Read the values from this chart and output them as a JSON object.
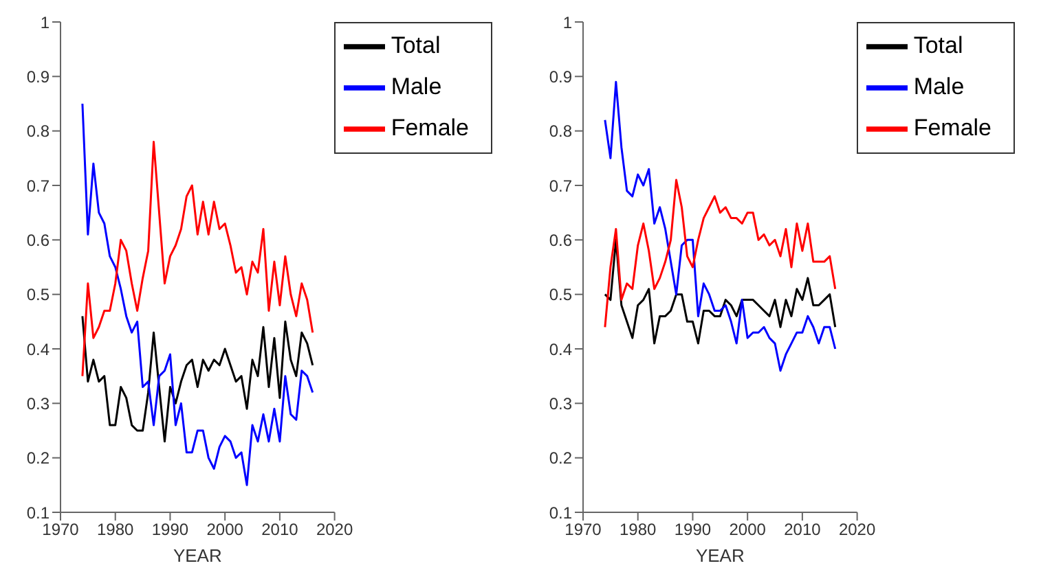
{
  "chart_data": [
    {
      "type": "line",
      "xlabel": "YEAR",
      "x": [
        1974,
        1975,
        1976,
        1977,
        1978,
        1979,
        1980,
        1981,
        1982,
        1983,
        1984,
        1985,
        1986,
        1987,
        1988,
        1989,
        1990,
        1991,
        1992,
        1993,
        1994,
        1995,
        1996,
        1997,
        1998,
        1999,
        2000,
        2001,
        2002,
        2003,
        2004,
        2005,
        2006,
        2007,
        2008,
        2009,
        2010,
        2011,
        2012,
        2013,
        2014,
        2015,
        2016
      ],
      "series": [
        {
          "name": "Total",
          "color": "#000000",
          "values": [
            0.46,
            0.34,
            0.38,
            0.34,
            0.35,
            0.26,
            0.26,
            0.33,
            0.31,
            0.26,
            0.25,
            0.25,
            0.32,
            0.43,
            0.33,
            0.23,
            0.33,
            0.3,
            0.34,
            0.37,
            0.38,
            0.33,
            0.38,
            0.36,
            0.38,
            0.37,
            0.4,
            0.37,
            0.34,
            0.35,
            0.29,
            0.38,
            0.35,
            0.44,
            0.33,
            0.42,
            0.31,
            0.45,
            0.38,
            0.35,
            0.43,
            0.41,
            0.37
          ]
        },
        {
          "name": "Male",
          "color": "#0000ff",
          "values": [
            0.85,
            0.61,
            0.74,
            0.65,
            0.63,
            0.57,
            0.55,
            0.51,
            0.46,
            0.43,
            0.45,
            0.33,
            0.34,
            0.26,
            0.35,
            0.36,
            0.39,
            0.26,
            0.3,
            0.21,
            0.21,
            0.25,
            0.25,
            0.2,
            0.18,
            0.22,
            0.24,
            0.23,
            0.2,
            0.21,
            0.15,
            0.26,
            0.23,
            0.28,
            0.23,
            0.29,
            0.23,
            0.35,
            0.28,
            0.27,
            0.36,
            0.35,
            0.32
          ]
        },
        {
          "name": "Female",
          "color": "#ff0000",
          "values": [
            0.35,
            0.52,
            0.42,
            0.44,
            0.47,
            0.47,
            0.52,
            0.6,
            0.58,
            0.52,
            0.47,
            0.53,
            0.58,
            0.78,
            0.65,
            0.52,
            0.57,
            0.59,
            0.62,
            0.68,
            0.7,
            0.61,
            0.67,
            0.61,
            0.67,
            0.62,
            0.63,
            0.59,
            0.54,
            0.55,
            0.5,
            0.56,
            0.54,
            0.62,
            0.47,
            0.56,
            0.48,
            0.57,
            0.5,
            0.46,
            0.52,
            0.49,
            0.43
          ]
        }
      ],
      "xlim": [
        1970,
        2020
      ],
      "xticks": [
        1970,
        1980,
        1990,
        2000,
        2010,
        2020
      ],
      "ylim": [
        0.1,
        1
      ],
      "yticks": [
        0.1,
        0.2,
        0.3,
        0.4,
        0.5,
        0.6,
        0.7,
        0.8,
        0.9,
        1
      ],
      "legend": "top right",
      "marker": "none",
      "line_style": "solid"
    },
    {
      "type": "line",
      "xlabel": "YEAR",
      "x": [
        1974,
        1975,
        1976,
        1977,
        1978,
        1979,
        1980,
        1981,
        1982,
        1983,
        1984,
        1985,
        1986,
        1987,
        1988,
        1989,
        1990,
        1991,
        1992,
        1993,
        1994,
        1995,
        1996,
        1997,
        1998,
        1999,
        2000,
        2001,
        2002,
        2003,
        2004,
        2005,
        2006,
        2007,
        2008,
        2009,
        2010,
        2011,
        2012,
        2013,
        2014,
        2015,
        2016
      ],
      "series": [
        {
          "name": "Total",
          "color": "#000000",
          "values": [
            0.5,
            0.49,
            0.6,
            0.48,
            0.45,
            0.42,
            0.48,
            0.49,
            0.51,
            0.41,
            0.46,
            0.46,
            0.47,
            0.5,
            0.5,
            0.45,
            0.45,
            0.41,
            0.47,
            0.47,
            0.46,
            0.46,
            0.49,
            0.48,
            0.46,
            0.49,
            0.49,
            0.49,
            0.48,
            0.47,
            0.46,
            0.49,
            0.44,
            0.49,
            0.46,
            0.51,
            0.49,
            0.53,
            0.48,
            0.48,
            0.49,
            0.5,
            0.44
          ]
        },
        {
          "name": "Male",
          "color": "#0000ff",
          "values": [
            0.82,
            0.75,
            0.89,
            0.77,
            0.69,
            0.68,
            0.72,
            0.7,
            0.73,
            0.63,
            0.66,
            0.62,
            0.56,
            0.5,
            0.59,
            0.6,
            0.6,
            0.46,
            0.52,
            0.5,
            0.47,
            0.47,
            0.48,
            0.45,
            0.41,
            0.49,
            0.42,
            0.43,
            0.43,
            0.44,
            0.42,
            0.41,
            0.36,
            0.39,
            0.41,
            0.43,
            0.43,
            0.46,
            0.44,
            0.41,
            0.44,
            0.44,
            0.4
          ]
        },
        {
          "name": "Female",
          "color": "#ff0000",
          "values": [
            0.44,
            0.55,
            0.62,
            0.49,
            0.52,
            0.51,
            0.59,
            0.63,
            0.58,
            0.51,
            0.53,
            0.56,
            0.6,
            0.71,
            0.66,
            0.57,
            0.55,
            0.6,
            0.64,
            0.66,
            0.68,
            0.65,
            0.66,
            0.64,
            0.64,
            0.63,
            0.65,
            0.65,
            0.6,
            0.61,
            0.59,
            0.6,
            0.57,
            0.62,
            0.55,
            0.63,
            0.58,
            0.63,
            0.56,
            0.56,
            0.56,
            0.57,
            0.51
          ]
        }
      ],
      "xlim": [
        1970,
        2020
      ],
      "xticks": [
        1970,
        1980,
        1990,
        2000,
        2010,
        2020
      ],
      "ylim": [
        0.1,
        1
      ],
      "yticks": [
        0.1,
        0.2,
        0.3,
        0.4,
        0.5,
        0.6,
        0.7,
        0.8,
        0.9,
        1
      ],
      "legend": "top right",
      "marker": "none",
      "line_style": "solid"
    }
  ]
}
